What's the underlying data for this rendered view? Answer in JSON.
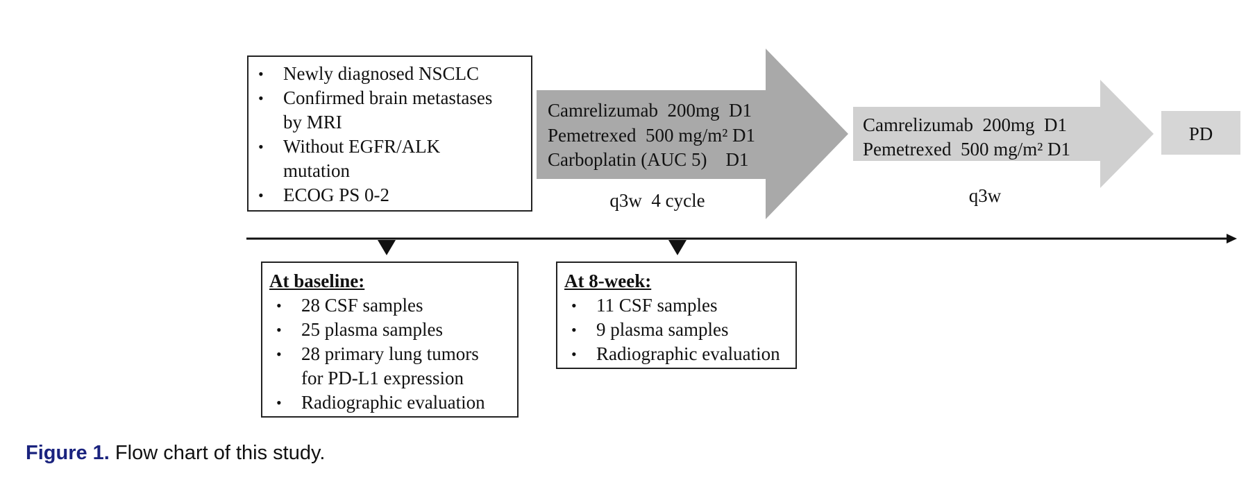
{
  "eligibility": {
    "items": [
      [
        "Newly diagnosed NSCLC"
      ],
      [
        "Confirmed brain metastases",
        "by MRI"
      ],
      [
        "Without EGFR/ALK",
        "mutation"
      ],
      [
        "ECOG PS 0-2"
      ]
    ]
  },
  "induction": {
    "lines": [
      "Camrelizumab  200mg  D1",
      "Pemetrexed  500 mg/m² D1",
      "Carboplatin (AUC 5)    D1"
    ],
    "schedule": "q3w  4 cycle"
  },
  "maintenance": {
    "lines": [
      "Camrelizumab  200mg  D1",
      "Pemetrexed  500 mg/m² D1"
    ],
    "schedule": "q3w"
  },
  "endpoint": {
    "label": "PD"
  },
  "baseline": {
    "heading": "At baseline:",
    "items": [
      [
        "28 CSF samples"
      ],
      [
        "25 plasma samples"
      ],
      [
        "28 primary lung tumors",
        "for PD-L1 expression"
      ],
      [
        "Radiographic evaluation"
      ]
    ]
  },
  "week8": {
    "heading": "At 8-week:",
    "items": [
      [
        "11 CSF samples"
      ],
      [
        "9 plasma samples"
      ],
      [
        "Radiographic evaluation"
      ]
    ]
  },
  "caption": {
    "label": "Figure 1.",
    "text": "Flow chart of this study."
  },
  "colors": {
    "induction_arrow": "#a9a9a9",
    "maintenance_arrow": "#d0d0d0",
    "pd_box": "#d6d6d6",
    "caption_label": "#1a237e"
  }
}
